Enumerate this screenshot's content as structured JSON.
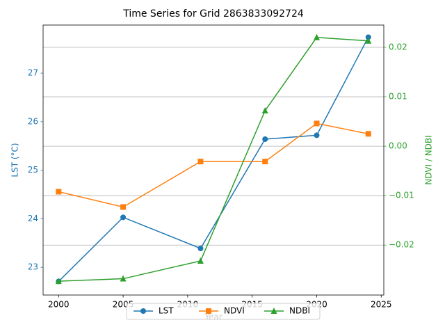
{
  "chart_data": {
    "type": "line",
    "title": "Time Series for Grid 2863833092724",
    "xlabel": "Year",
    "ylabel": "LST (°C)",
    "y2label": "NDVI / NDBI",
    "x": [
      2000,
      2005,
      2011,
      2016,
      2020,
      2024
    ],
    "series": [
      {
        "name": "LST",
        "color": "#1f77b4",
        "marker": "circle",
        "values": [
          22.71,
          24.03,
          23.39,
          25.64,
          25.72,
          27.74
        ]
      },
      {
        "name": "NDVI",
        "color": "#ff7f0e",
        "marker": "square",
        "axis": "y2",
        "values": [
          -0.0092,
          -0.0123,
          -0.0031,
          -0.0031,
          0.0046,
          0.0025
        ]
      },
      {
        "name": "NDBI",
        "color": "#2ca02c",
        "marker": "triangle",
        "axis": "y2",
        "values": [
          -0.0273,
          -0.0268,
          -0.0232,
          0.0072,
          0.022,
          0.0213
        ]
      }
    ],
    "xlim": [
      1998.8,
      2025.2
    ],
    "xticks": [
      2000,
      2005,
      2010,
      2015,
      2020,
      2025
    ],
    "ylim": [
      22.43,
      27.99
    ],
    "yticks": [
      23,
      24,
      25,
      26,
      27
    ],
    "y2lim": [
      -0.0301,
      0.0245
    ],
    "y2ticks": [
      {
        "value": -0.02,
        "label": "−0.02"
      },
      {
        "value": -0.01,
        "label": "−0.01"
      },
      {
        "value": 0,
        "label": "0.00"
      },
      {
        "value": 0.01,
        "label": "0.01"
      },
      0.02
    ],
    "grid": "y2",
    "legend": "lower center"
  }
}
